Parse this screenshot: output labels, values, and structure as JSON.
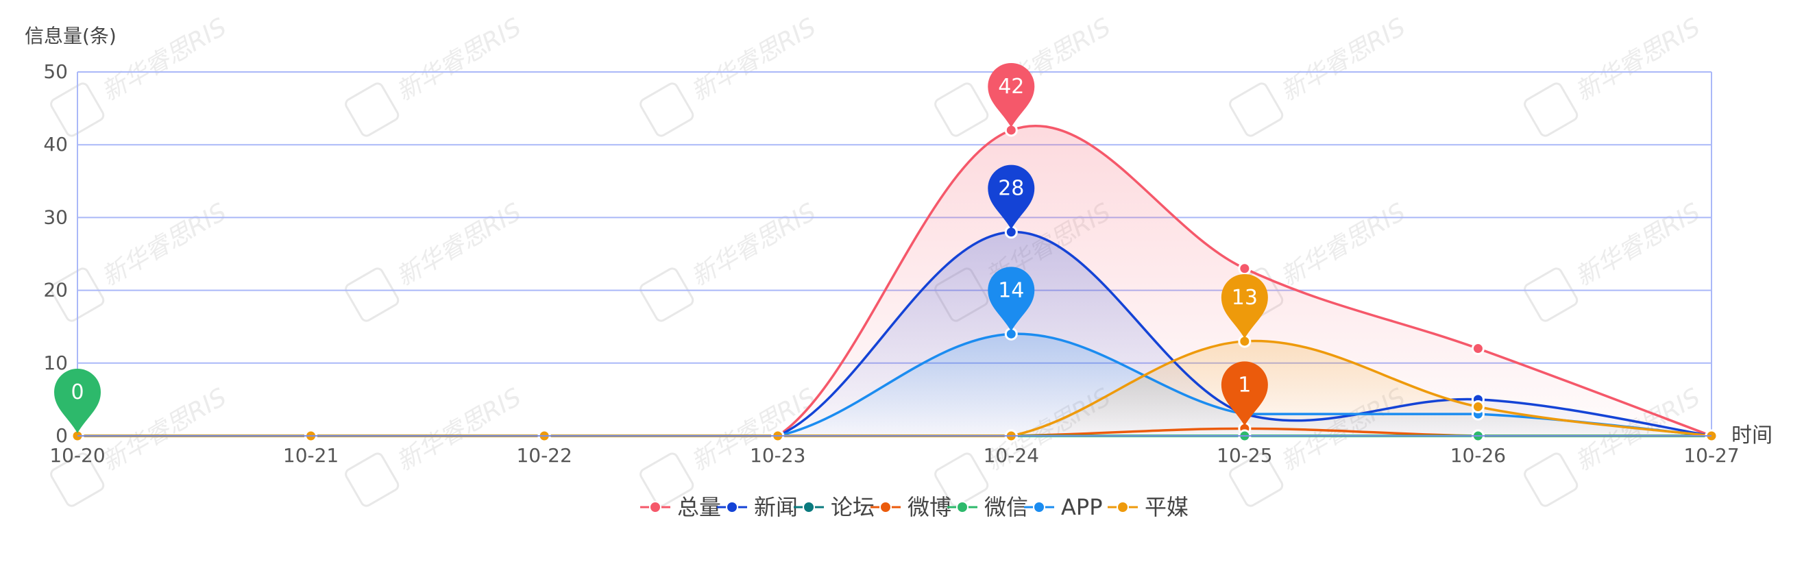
{
  "watermark": "新华睿思RIS",
  "chart_data": {
    "type": "line",
    "smooth": true,
    "ylabel": "信息量(条)",
    "xlabel": "时间",
    "ylim": [
      0,
      50
    ],
    "yticks": [
      0,
      10,
      20,
      30,
      40,
      50
    ],
    "grid": true,
    "legend_position": "bottom-center",
    "categories": [
      "10-20",
      "10-21",
      "10-22",
      "10-23",
      "10-24",
      "10-25",
      "10-26",
      "10-27"
    ],
    "series": [
      {
        "name": "总量",
        "color": "#f5586a",
        "values": [
          0,
          0,
          0,
          0,
          42,
          23,
          12,
          0
        ],
        "area": true,
        "max_pin": true
      },
      {
        "name": "新闻",
        "color": "#1443d6",
        "values": [
          0,
          0,
          0,
          0,
          28,
          3,
          5,
          0
        ],
        "area": true,
        "max_pin": true
      },
      {
        "name": "论坛",
        "color": "#0a7a7e",
        "values": [
          0,
          0,
          0,
          0,
          0,
          0,
          0,
          0
        ],
        "area": false,
        "max_pin": false
      },
      {
        "name": "微博",
        "color": "#eb5b0c",
        "values": [
          0,
          0,
          0,
          0,
          0,
          1,
          0,
          0
        ],
        "area": false,
        "max_pin": true
      },
      {
        "name": "微信",
        "color": "#2db96b",
        "values": [
          0,
          0,
          0,
          0,
          0,
          0,
          0,
          0
        ],
        "area": false,
        "max_pin": true
      },
      {
        "name": "APP",
        "color": "#1b8cf0",
        "values": [
          0,
          0,
          0,
          0,
          14,
          3,
          3,
          0
        ],
        "area": true,
        "max_pin": true
      },
      {
        "name": "平媒",
        "color": "#ee9a0b",
        "values": [
          0,
          0,
          0,
          0,
          0,
          13,
          4,
          0
        ],
        "area": true,
        "max_pin": true
      }
    ],
    "max_labels": [
      {
        "series": "总量",
        "x": "10-24",
        "value": "42"
      },
      {
        "series": "新闻",
        "x": "10-24",
        "value": "28"
      },
      {
        "series": "APP",
        "x": "10-24",
        "value": "14"
      },
      {
        "series": "平媒",
        "x": "10-25",
        "value": "13"
      },
      {
        "series": "微博",
        "x": "10-25",
        "value": "1"
      },
      {
        "series": "微信",
        "x": "10-20",
        "value": "0"
      }
    ]
  }
}
